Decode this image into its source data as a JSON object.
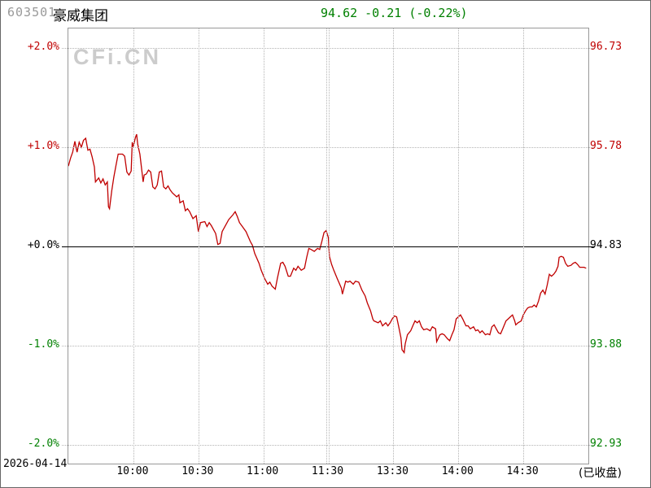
{
  "header": {
    "code": "603501",
    "name": "豪威集团",
    "price": "94.62",
    "change": "-0.21",
    "change_pct": "(-0.22%)"
  },
  "watermark": "CFi.CN",
  "footer": {
    "date": "2026-04-14",
    "status": "(已收盘)"
  },
  "colors": {
    "up": "#c00000",
    "down": "#008000",
    "flat": "#000000",
    "line": "#c00000",
    "quote": "#008000",
    "code": "#999999",
    "grid": "#b4b4b4",
    "border": "#999999",
    "watermark": "#cccccc"
  },
  "chart_data": {
    "type": "line",
    "title": "603501 豪威集团 intraday price (% change vs prev close)",
    "prev_close": 94.83,
    "last": 94.62,
    "change": -0.21,
    "change_pct": -0.22,
    "market_status": "closed",
    "x_axis": "trading time 09:30-11:30, 13:00-15:00 (minutes 0-240)",
    "x_ticks": [
      "10:00",
      "10:30",
      "11:00",
      "11:30",
      "13:30",
      "14:00",
      "14:30"
    ],
    "x_tick_minutes": [
      30,
      60,
      90,
      120,
      150,
      180,
      210
    ],
    "midday_break_minute": 120,
    "y_left_ticks": [
      {
        "text": "+2.0%",
        "tone": "up"
      },
      {
        "text": "+1.0%",
        "tone": "up"
      },
      {
        "text": "+0.0%",
        "tone": "flat"
      },
      {
        "text": "-1.0%",
        "tone": "down"
      },
      {
        "text": "-2.0%",
        "tone": "down"
      }
    ],
    "y_right_ticks": [
      {
        "text": "96.73",
        "tone": "up"
      },
      {
        "text": "95.78",
        "tone": "up"
      },
      {
        "text": "94.83",
        "tone": "flat"
      },
      {
        "text": "93.88",
        "tone": "down"
      },
      {
        "text": "92.93",
        "tone": "down"
      }
    ],
    "ylim_pct": [
      -2.2,
      2.2
    ],
    "grid": true,
    "series": [
      {
        "name": "price_pct_change",
        "points": [
          [
            0,
            0.81
          ],
          [
            1,
            0.89
          ],
          [
            2,
            0.95
          ],
          [
            3,
            1.06
          ],
          [
            4,
            0.95
          ],
          [
            5,
            1.05
          ],
          [
            6,
            1.0
          ],
          [
            7,
            1.07
          ],
          [
            8,
            1.09
          ],
          [
            9,
            0.97
          ],
          [
            10,
            0.98
          ],
          [
            11,
            0.9
          ],
          [
            12,
            0.8
          ],
          [
            12.5,
            0.65
          ],
          [
            14,
            0.69
          ],
          [
            15,
            0.64
          ],
          [
            16,
            0.68
          ],
          [
            17,
            0.62
          ],
          [
            18,
            0.65
          ],
          [
            18.5,
            0.4
          ],
          [
            19,
            0.38
          ],
          [
            20,
            0.56
          ],
          [
            21,
            0.7
          ],
          [
            22,
            0.82
          ],
          [
            23,
            0.93
          ],
          [
            25,
            0.93
          ],
          [
            26,
            0.91
          ],
          [
            27,
            0.75
          ],
          [
            28,
            0.72
          ],
          [
            29,
            0.76
          ],
          [
            29.5,
            1.05
          ],
          [
            30,
            1.01
          ],
          [
            31,
            1.1
          ],
          [
            31.5,
            1.13
          ],
          [
            32,
            1.03
          ],
          [
            33,
            0.93
          ],
          [
            34,
            0.75
          ],
          [
            34.5,
            0.65
          ],
          [
            35,
            0.72
          ],
          [
            36,
            0.73
          ],
          [
            37,
            0.77
          ],
          [
            38,
            0.75
          ],
          [
            39,
            0.6
          ],
          [
            40,
            0.58
          ],
          [
            41,
            0.62
          ],
          [
            42,
            0.75
          ],
          [
            43,
            0.76
          ],
          [
            44,
            0.6
          ],
          [
            45,
            0.58
          ],
          [
            46,
            0.61
          ],
          [
            47,
            0.57
          ],
          [
            48,
            0.54
          ],
          [
            50,
            0.5
          ],
          [
            51,
            0.52
          ],
          [
            51.5,
            0.44
          ],
          [
            53,
            0.46
          ],
          [
            54,
            0.36
          ],
          [
            55,
            0.38
          ],
          [
            56,
            0.35
          ],
          [
            57.5,
            0.28
          ],
          [
            59,
            0.31
          ],
          [
            60,
            0.15
          ],
          [
            61,
            0.24
          ],
          [
            63,
            0.25
          ],
          [
            64,
            0.2
          ],
          [
            65,
            0.24
          ],
          [
            66,
            0.21
          ],
          [
            68,
            0.13
          ],
          [
            69,
            0.02
          ],
          [
            70,
            0.03
          ],
          [
            71,
            0.15
          ],
          [
            72.5,
            0.21
          ],
          [
            74,
            0.27
          ],
          [
            76,
            0.32
          ],
          [
            77,
            0.35
          ],
          [
            78,
            0.3
          ],
          [
            79,
            0.24
          ],
          [
            80,
            0.21
          ],
          [
            82,
            0.15
          ],
          [
            84,
            0.05
          ],
          [
            85,
            0.01
          ],
          [
            86,
            -0.07
          ],
          [
            88,
            -0.17
          ],
          [
            89,
            -0.24
          ],
          [
            90.5,
            -0.32
          ],
          [
            92,
            -0.38
          ],
          [
            93,
            -0.36
          ],
          [
            94,
            -0.4
          ],
          [
            95.5,
            -0.43
          ],
          [
            96.5,
            -0.32
          ],
          [
            98,
            -0.17
          ],
          [
            99,
            -0.16
          ],
          [
            100,
            -0.2
          ],
          [
            101.5,
            -0.3
          ],
          [
            102.5,
            -0.3
          ],
          [
            104,
            -0.22
          ],
          [
            105,
            -0.24
          ],
          [
            106,
            -0.2
          ],
          [
            107.5,
            -0.24
          ],
          [
            109,
            -0.22
          ],
          [
            110,
            -0.11
          ],
          [
            111,
            -0.02
          ],
          [
            112,
            -0.03
          ],
          [
            113.5,
            -0.05
          ],
          [
            115,
            -0.02
          ],
          [
            116,
            -0.03
          ],
          [
            117,
            0.05
          ],
          [
            118,
            0.14
          ],
          [
            119,
            0.16
          ],
          [
            120,
            0.09
          ],
          [
            120.5,
            -0.1
          ],
          [
            121.5,
            -0.18
          ],
          [
            122.5,
            -0.24
          ],
          [
            124,
            -0.32
          ],
          [
            126,
            -0.42
          ],
          [
            126.5,
            -0.48
          ],
          [
            128,
            -0.35
          ],
          [
            129,
            -0.36
          ],
          [
            130,
            -0.35
          ],
          [
            131.5,
            -0.38
          ],
          [
            132.5,
            -0.35
          ],
          [
            134,
            -0.36
          ],
          [
            135.5,
            -0.44
          ],
          [
            137,
            -0.5
          ],
          [
            138,
            -0.57
          ],
          [
            139.5,
            -0.65
          ],
          [
            140.5,
            -0.73
          ],
          [
            141,
            -0.75
          ],
          [
            143,
            -0.77
          ],
          [
            144,
            -0.75
          ],
          [
            145,
            -0.8
          ],
          [
            146.5,
            -0.77
          ],
          [
            147.5,
            -0.8
          ],
          [
            148.5,
            -0.77
          ],
          [
            149.5,
            -0.73
          ],
          [
            150.5,
            -0.7
          ],
          [
            151.5,
            -0.71
          ],
          [
            152.5,
            -0.81
          ],
          [
            153.5,
            -0.92
          ],
          [
            154,
            -1.04
          ],
          [
            155,
            -1.07
          ],
          [
            155.5,
            -0.98
          ],
          [
            156.5,
            -0.89
          ],
          [
            158,
            -0.85
          ],
          [
            159,
            -0.8
          ],
          [
            160,
            -0.75
          ],
          [
            161,
            -0.77
          ],
          [
            162,
            -0.75
          ],
          [
            163,
            -0.81
          ],
          [
            164,
            -0.84
          ],
          [
            165.5,
            -0.83
          ],
          [
            167,
            -0.85
          ],
          [
            168,
            -0.81
          ],
          [
            169.5,
            -0.83
          ],
          [
            170,
            -0.96
          ],
          [
            171.5,
            -0.89
          ],
          [
            172.5,
            -0.88
          ],
          [
            173.5,
            -0.89
          ],
          [
            175,
            -0.93
          ],
          [
            176,
            -0.95
          ],
          [
            177,
            -0.89
          ],
          [
            178,
            -0.84
          ],
          [
            179,
            -0.73
          ],
          [
            180.5,
            -0.7
          ],
          [
            181,
            -0.69
          ],
          [
            182,
            -0.73
          ],
          [
            183.5,
            -0.8
          ],
          [
            184.5,
            -0.8
          ],
          [
            185.5,
            -0.83
          ],
          [
            187,
            -0.81
          ],
          [
            188,
            -0.85
          ],
          [
            189,
            -0.84
          ],
          [
            190,
            -0.87
          ],
          [
            191,
            -0.85
          ],
          [
            192.5,
            -0.89
          ],
          [
            193.5,
            -0.88
          ],
          [
            194.5,
            -0.89
          ],
          [
            195.5,
            -0.81
          ],
          [
            196.5,
            -0.79
          ],
          [
            197,
            -0.81
          ],
          [
            198.5,
            -0.87
          ],
          [
            199.5,
            -0.88
          ],
          [
            200.5,
            -0.83
          ],
          [
            202,
            -0.75
          ],
          [
            203,
            -0.73
          ],
          [
            204,
            -0.71
          ],
          [
            205,
            -0.69
          ],
          [
            206,
            -0.75
          ],
          [
            206.5,
            -0.79
          ],
          [
            207.5,
            -0.77
          ],
          [
            209,
            -0.75
          ],
          [
            210,
            -0.69
          ],
          [
            211,
            -0.65
          ],
          [
            212,
            -0.62
          ],
          [
            213,
            -0.61
          ],
          [
            214,
            -0.61
          ],
          [
            215,
            -0.59
          ],
          [
            216,
            -0.61
          ],
          [
            217,
            -0.55
          ],
          [
            218,
            -0.47
          ],
          [
            219,
            -0.44
          ],
          [
            220,
            -0.48
          ],
          [
            221,
            -0.39
          ],
          [
            222,
            -0.28
          ],
          [
            223,
            -0.3
          ],
          [
            224,
            -0.28
          ],
          [
            225,
            -0.25
          ],
          [
            226,
            -0.2
          ],
          [
            226.5,
            -0.11
          ],
          [
            227.5,
            -0.1
          ],
          [
            228.5,
            -0.11
          ],
          [
            229.5,
            -0.17
          ],
          [
            230.5,
            -0.2
          ],
          [
            232,
            -0.19
          ],
          [
            233,
            -0.17
          ],
          [
            234,
            -0.16
          ],
          [
            235,
            -0.18
          ],
          [
            236,
            -0.21
          ],
          [
            237,
            -0.21
          ],
          [
            238,
            -0.21
          ],
          [
            239,
            -0.22
          ]
        ]
      }
    ]
  }
}
